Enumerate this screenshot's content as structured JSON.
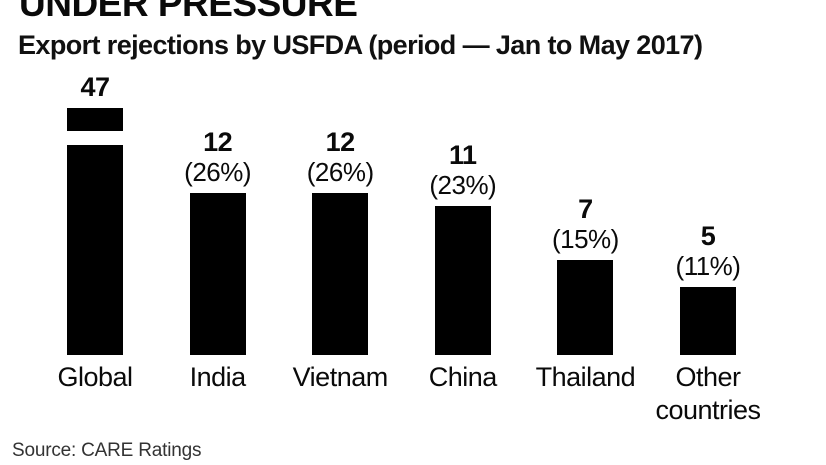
{
  "header": {
    "title": "UNDER PRESSURE",
    "subtitle": "Export rejections by USFDA (period — Jan to May 2017)"
  },
  "footer": {
    "source": "Source: CARE Ratings"
  },
  "chart_data": {
    "type": "bar",
    "title": "UNDER PRESSURE",
    "subtitle": "Export rejections by USFDA (period — Jan to May 2017)",
    "categories": [
      "Global",
      "India",
      "Vietnam",
      "China",
      "Thailand",
      "Other countries"
    ],
    "values": [
      47,
      12,
      12,
      11,
      7,
      5
    ],
    "percent_labels": [
      "",
      "(26%)",
      "(26%)",
      "(23%)",
      "(15%)",
      "(11%)"
    ],
    "value_label_position": "above-bar",
    "bar_color": "#000000",
    "background_color": "#ffffff",
    "grid": false,
    "axes_visible": false,
    "broken_bar_category": "Global",
    "source": "Source: CARE Ratings"
  }
}
